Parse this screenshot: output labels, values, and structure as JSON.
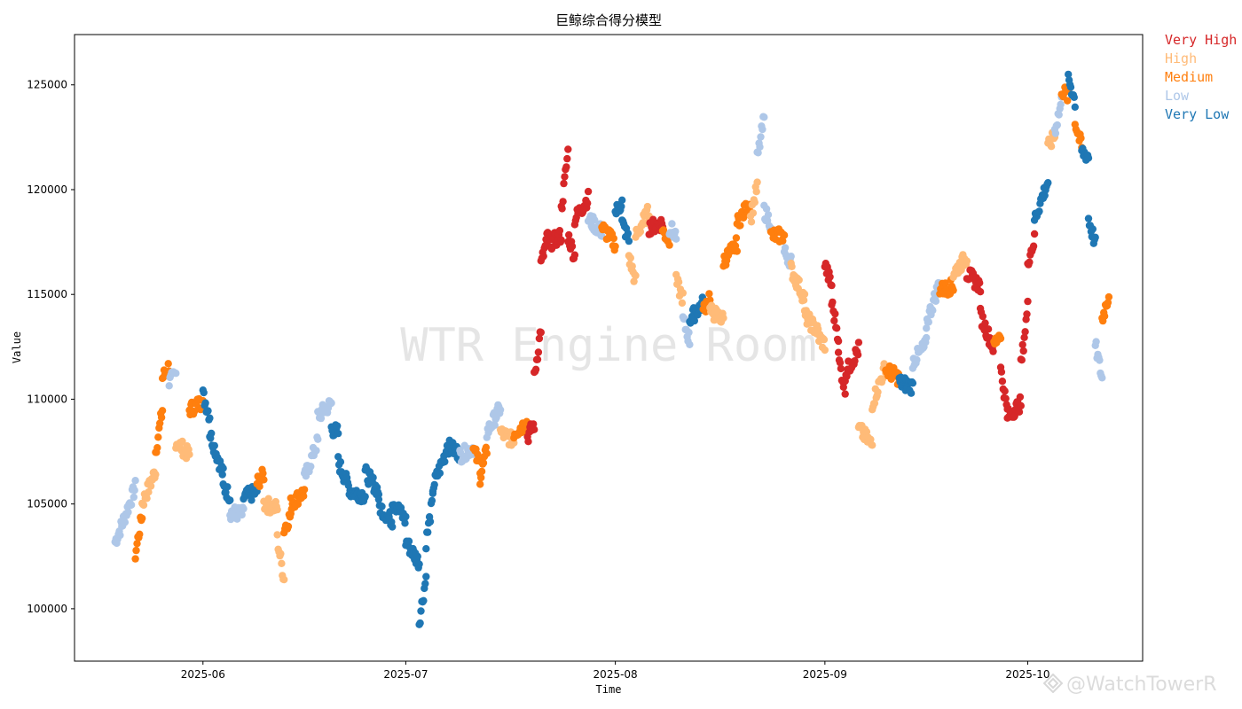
{
  "chart_data": {
    "type": "scatter",
    "title": "巨鲸综合得分模型",
    "xlabel": "Time",
    "ylabel": "Value",
    "xlim": [
      "2025-05-13",
      "2025-10-18"
    ],
    "ylim": [
      97500,
      127400
    ],
    "x_ticks": [
      "2025-06-01",
      "2025-07-01",
      "2025-08-01",
      "2025-09-01",
      "2025-10-01"
    ],
    "x_tick_labels": [
      "2025-06",
      "2025-07",
      "2025-08",
      "2025-09",
      "2025-10"
    ],
    "y_ticks": [
      100000,
      105000,
      110000,
      115000,
      120000,
      125000
    ],
    "y_tick_labels": [
      "100000",
      "105000",
      "110000",
      "115000",
      "120000",
      "125000"
    ],
    "legend_position": "outside-top-right",
    "grid": false,
    "watermark": "WTR Engine Room",
    "categories": [
      "Very High",
      "High",
      "Medium",
      "Low",
      "Very Low"
    ],
    "colors": {
      "Very High": "#d62728",
      "High": "#ffbb78",
      "Medium": "#ff7f0e",
      "Low": "#aec7e8",
      "Very Low": "#1f77b4"
    },
    "segments": [
      {
        "start": "2025-05-19",
        "end": "2025-05-20",
        "y0": 103200,
        "y1": 104000,
        "cat": "Low"
      },
      {
        "start": "2025-05-20",
        "end": "2025-05-22",
        "y0": 104000,
        "y1": 105800,
        "cat": "Low"
      },
      {
        "start": "2025-05-22",
        "end": "2025-05-23",
        "y0": 102600,
        "y1": 104500,
        "cat": "Medium"
      },
      {
        "start": "2025-05-23",
        "end": "2025-05-25",
        "y0": 105000,
        "y1": 106600,
        "cat": "High"
      },
      {
        "start": "2025-05-25",
        "end": "2025-05-26",
        "y0": 107500,
        "y1": 109500,
        "cat": "Medium"
      },
      {
        "start": "2025-05-26",
        "end": "2025-05-27",
        "y0": 111000,
        "y1": 111600,
        "cat": "Medium"
      },
      {
        "start": "2025-05-27",
        "end": "2025-05-28",
        "y0": 110800,
        "y1": 111200,
        "cat": "Low"
      },
      {
        "start": "2025-05-28",
        "end": "2025-05-30",
        "y0": 108000,
        "y1": 107300,
        "cat": "High"
      },
      {
        "start": "2025-05-30",
        "end": "2025-06-01",
        "y0": 109500,
        "y1": 109900,
        "cat": "Medium"
      },
      {
        "start": "2025-06-01",
        "end": "2025-06-02",
        "y0": 110200,
        "y1": 109200,
        "cat": "Very Low"
      },
      {
        "start": "2025-06-02",
        "end": "2025-06-04",
        "y0": 108400,
        "y1": 106400,
        "cat": "Very Low"
      },
      {
        "start": "2025-06-04",
        "end": "2025-06-05",
        "y0": 105800,
        "y1": 105400,
        "cat": "Very Low"
      },
      {
        "start": "2025-06-05",
        "end": "2025-06-07",
        "y0": 104600,
        "y1": 104500,
        "cat": "Low"
      },
      {
        "start": "2025-06-07",
        "end": "2025-06-09",
        "y0": 105300,
        "y1": 105600,
        "cat": "Very Low"
      },
      {
        "start": "2025-06-09",
        "end": "2025-06-10",
        "y0": 106000,
        "y1": 106400,
        "cat": "Medium"
      },
      {
        "start": "2025-06-10",
        "end": "2025-06-12",
        "y0": 105000,
        "y1": 104800,
        "cat": "High"
      },
      {
        "start": "2025-06-12",
        "end": "2025-06-13",
        "y0": 103300,
        "y1": 101400,
        "cat": "High"
      },
      {
        "start": "2025-06-13",
        "end": "2025-06-14",
        "y0": 103800,
        "y1": 104500,
        "cat": "Medium"
      },
      {
        "start": "2025-06-14",
        "end": "2025-06-16",
        "y0": 105000,
        "y1": 105600,
        "cat": "Medium"
      },
      {
        "start": "2025-06-16",
        "end": "2025-06-18",
        "y0": 106200,
        "y1": 108000,
        "cat": "Low"
      },
      {
        "start": "2025-06-18",
        "end": "2025-06-20",
        "y0": 109200,
        "y1": 109800,
        "cat": "Low"
      },
      {
        "start": "2025-06-20",
        "end": "2025-06-21",
        "y0": 108600,
        "y1": 108400,
        "cat": "Very Low"
      },
      {
        "start": "2025-06-21",
        "end": "2025-06-23",
        "y0": 107000,
        "y1": 105500,
        "cat": "Very Low"
      },
      {
        "start": "2025-06-23",
        "end": "2025-06-25",
        "y0": 105600,
        "y1": 105400,
        "cat": "Very Low"
      },
      {
        "start": "2025-06-25",
        "end": "2025-06-27",
        "y0": 106500,
        "y1": 105600,
        "cat": "Very Low"
      },
      {
        "start": "2025-06-27",
        "end": "2025-06-29",
        "y0": 104900,
        "y1": 104200,
        "cat": "Very Low"
      },
      {
        "start": "2025-06-29",
        "end": "2025-07-01",
        "y0": 105200,
        "y1": 104200,
        "cat": "Very Low"
      },
      {
        "start": "2025-07-01",
        "end": "2025-07-03",
        "y0": 103200,
        "y1": 102200,
        "cat": "Very Low"
      },
      {
        "start": "2025-07-03",
        "end": "2025-07-04",
        "y0": 99400,
        "y1": 101500,
        "cat": "Very Low"
      },
      {
        "start": "2025-07-04",
        "end": "2025-07-05",
        "y0": 103200,
        "y1": 105200,
        "cat": "Very Low"
      },
      {
        "start": "2025-07-05",
        "end": "2025-07-07",
        "y0": 105800,
        "y1": 107500,
        "cat": "Very Low"
      },
      {
        "start": "2025-07-07",
        "end": "2025-07-09",
        "y0": 107800,
        "y1": 107400,
        "cat": "Very Low"
      },
      {
        "start": "2025-07-09",
        "end": "2025-07-11",
        "y0": 107300,
        "y1": 107700,
        "cat": "Low"
      },
      {
        "start": "2025-07-11",
        "end": "2025-07-12",
        "y0": 107600,
        "y1": 106800,
        "cat": "Medium"
      },
      {
        "start": "2025-07-12",
        "end": "2025-07-13",
        "y0": 106200,
        "y1": 107600,
        "cat": "Medium"
      },
      {
        "start": "2025-07-13",
        "end": "2025-07-15",
        "y0": 108400,
        "y1": 109600,
        "cat": "Low"
      },
      {
        "start": "2025-07-15",
        "end": "2025-07-17",
        "y0": 108400,
        "y1": 108000,
        "cat": "High"
      },
      {
        "start": "2025-07-17",
        "end": "2025-07-19",
        "y0": 108400,
        "y1": 108900,
        "cat": "Medium"
      },
      {
        "start": "2025-07-19",
        "end": "2025-07-20",
        "y0": 108200,
        "y1": 108800,
        "cat": "Very High"
      },
      {
        "start": "2025-07-20",
        "end": "2025-07-21",
        "y0": 111000,
        "y1": 113400,
        "cat": "Very High"
      },
      {
        "start": "2025-07-21",
        "end": "2025-07-22",
        "y0": 116400,
        "y1": 117800,
        "cat": "Very High"
      },
      {
        "start": "2025-07-22",
        "end": "2025-07-24",
        "y0": 117400,
        "y1": 117800,
        "cat": "Very High"
      },
      {
        "start": "2025-07-24",
        "end": "2025-07-25",
        "y0": 119000,
        "y1": 121800,
        "cat": "Very High"
      },
      {
        "start": "2025-07-25",
        "end": "2025-07-26",
        "y0": 117800,
        "y1": 116800,
        "cat": "Very High"
      },
      {
        "start": "2025-07-26",
        "end": "2025-07-28",
        "y0": 118600,
        "y1": 119600,
        "cat": "Very High"
      },
      {
        "start": "2025-07-28",
        "end": "2025-07-30",
        "y0": 118600,
        "y1": 118000,
        "cat": "Low"
      },
      {
        "start": "2025-07-30",
        "end": "2025-08-01",
        "y0": 118200,
        "y1": 117400,
        "cat": "Medium"
      },
      {
        "start": "2025-08-01",
        "end": "2025-08-02",
        "y0": 118900,
        "y1": 119400,
        "cat": "Very Low"
      },
      {
        "start": "2025-08-02",
        "end": "2025-08-03",
        "y0": 118400,
        "y1": 117600,
        "cat": "Very Low"
      },
      {
        "start": "2025-08-03",
        "end": "2025-08-04",
        "y0": 116800,
        "y1": 115600,
        "cat": "High"
      },
      {
        "start": "2025-08-04",
        "end": "2025-08-06",
        "y0": 117800,
        "y1": 119000,
        "cat": "High"
      },
      {
        "start": "2025-08-06",
        "end": "2025-08-08",
        "y0": 118200,
        "y1": 118400,
        "cat": "Very High"
      },
      {
        "start": "2025-08-08",
        "end": "2025-08-09",
        "y0": 118000,
        "y1": 117600,
        "cat": "Medium"
      },
      {
        "start": "2025-08-09",
        "end": "2025-08-10",
        "y0": 118200,
        "y1": 117800,
        "cat": "Low"
      },
      {
        "start": "2025-08-10",
        "end": "2025-08-11",
        "y0": 115600,
        "y1": 114800,
        "cat": "High"
      },
      {
        "start": "2025-08-11",
        "end": "2025-08-12",
        "y0": 113800,
        "y1": 112800,
        "cat": "Low"
      },
      {
        "start": "2025-08-12",
        "end": "2025-08-14",
        "y0": 113800,
        "y1": 114600,
        "cat": "Very Low"
      },
      {
        "start": "2025-08-14",
        "end": "2025-08-15",
        "y0": 114200,
        "y1": 115000,
        "cat": "Medium"
      },
      {
        "start": "2025-08-15",
        "end": "2025-08-17",
        "y0": 114200,
        "y1": 113800,
        "cat": "High"
      },
      {
        "start": "2025-08-17",
        "end": "2025-08-19",
        "y0": 116600,
        "y1": 117400,
        "cat": "Medium"
      },
      {
        "start": "2025-08-19",
        "end": "2025-08-21",
        "y0": 118400,
        "y1": 119400,
        "cat": "Medium"
      },
      {
        "start": "2025-08-21",
        "end": "2025-08-22",
        "y0": 118600,
        "y1": 120200,
        "cat": "High"
      },
      {
        "start": "2025-08-22",
        "end": "2025-08-23",
        "y0": 121500,
        "y1": 123400,
        "cat": "Low"
      },
      {
        "start": "2025-08-23",
        "end": "2025-08-24",
        "y0": 119000,
        "y1": 118400,
        "cat": "Low"
      },
      {
        "start": "2025-08-24",
        "end": "2025-08-26",
        "y0": 117800,
        "y1": 117800,
        "cat": "Medium"
      },
      {
        "start": "2025-08-26",
        "end": "2025-08-27",
        "y0": 117000,
        "y1": 116600,
        "cat": "Low"
      },
      {
        "start": "2025-08-27",
        "end": "2025-08-29",
        "y0": 116200,
        "y1": 114800,
        "cat": "High"
      },
      {
        "start": "2025-08-29",
        "end": "2025-08-31",
        "y0": 114000,
        "y1": 113200,
        "cat": "High"
      },
      {
        "start": "2025-08-31",
        "end": "2025-09-01",
        "y0": 113000,
        "y1": 112600,
        "cat": "High"
      },
      {
        "start": "2025-09-01",
        "end": "2025-09-02",
        "y0": 116400,
        "y1": 115400,
        "cat": "Very High"
      },
      {
        "start": "2025-09-02",
        "end": "2025-09-03",
        "y0": 114600,
        "y1": 113000,
        "cat": "Very High"
      },
      {
        "start": "2025-09-03",
        "end": "2025-09-04",
        "y0": 112000,
        "y1": 110400,
        "cat": "Very High"
      },
      {
        "start": "2025-09-04",
        "end": "2025-09-06",
        "y0": 111200,
        "y1": 112400,
        "cat": "Very High"
      },
      {
        "start": "2025-09-06",
        "end": "2025-09-08",
        "y0": 108600,
        "y1": 107800,
        "cat": "High"
      },
      {
        "start": "2025-09-08",
        "end": "2025-09-10",
        "y0": 109800,
        "y1": 111600,
        "cat": "High"
      },
      {
        "start": "2025-09-10",
        "end": "2025-09-12",
        "y0": 111400,
        "y1": 111000,
        "cat": "Medium"
      },
      {
        "start": "2025-09-12",
        "end": "2025-09-14",
        "y0": 110800,
        "y1": 110600,
        "cat": "Very Low"
      },
      {
        "start": "2025-09-14",
        "end": "2025-09-16",
        "y0": 111800,
        "y1": 112600,
        "cat": "Low"
      },
      {
        "start": "2025-09-16",
        "end": "2025-09-18",
        "y0": 113600,
        "y1": 115600,
        "cat": "Low"
      },
      {
        "start": "2025-09-18",
        "end": "2025-09-20",
        "y0": 115200,
        "y1": 115400,
        "cat": "Medium"
      },
      {
        "start": "2025-09-20",
        "end": "2025-09-22",
        "y0": 116000,
        "y1": 116800,
        "cat": "High"
      },
      {
        "start": "2025-09-22",
        "end": "2025-09-24",
        "y0": 116000,
        "y1": 115400,
        "cat": "Very High"
      },
      {
        "start": "2025-09-24",
        "end": "2025-09-26",
        "y0": 114000,
        "y1": 112400,
        "cat": "Very High"
      },
      {
        "start": "2025-09-26",
        "end": "2025-09-27",
        "y0": 112600,
        "y1": 113200,
        "cat": "Medium"
      },
      {
        "start": "2025-09-27",
        "end": "2025-09-28",
        "y0": 111400,
        "y1": 109400,
        "cat": "Very High"
      },
      {
        "start": "2025-09-28",
        "end": "2025-09-30",
        "y0": 109200,
        "y1": 109800,
        "cat": "Very High"
      },
      {
        "start": "2025-09-30",
        "end": "2025-10-01",
        "y0": 111600,
        "y1": 114400,
        "cat": "Very High"
      },
      {
        "start": "2025-10-01",
        "end": "2025-10-02",
        "y0": 116600,
        "y1": 117600,
        "cat": "Very High"
      },
      {
        "start": "2025-10-02",
        "end": "2025-10-04",
        "y0": 118600,
        "y1": 120400,
        "cat": "Very Low"
      },
      {
        "start": "2025-10-04",
        "end": "2025-10-05",
        "y0": 122000,
        "y1": 122600,
        "cat": "High"
      },
      {
        "start": "2025-10-05",
        "end": "2025-10-06",
        "y0": 122800,
        "y1": 124200,
        "cat": "Low"
      },
      {
        "start": "2025-10-06",
        "end": "2025-10-07",
        "y0": 124800,
        "y1": 124400,
        "cat": "Medium"
      },
      {
        "start": "2025-10-07",
        "end": "2025-10-08",
        "y0": 125400,
        "y1": 124200,
        "cat": "Very Low"
      },
      {
        "start": "2025-10-08",
        "end": "2025-10-09",
        "y0": 123200,
        "y1": 122000,
        "cat": "Medium"
      },
      {
        "start": "2025-10-09",
        "end": "2025-10-10",
        "y0": 121800,
        "y1": 121600,
        "cat": "Very Low"
      },
      {
        "start": "2025-10-10",
        "end": "2025-10-11",
        "y0": 118600,
        "y1": 117400,
        "cat": "Very Low"
      },
      {
        "start": "2025-10-11",
        "end": "2025-10-12",
        "y0": 112600,
        "y1": 111000,
        "cat": "Low"
      },
      {
        "start": "2025-10-12",
        "end": "2025-10-13",
        "y0": 113800,
        "y1": 115000,
        "cat": "Medium"
      }
    ]
  },
  "credit": "@WatchTowerR"
}
